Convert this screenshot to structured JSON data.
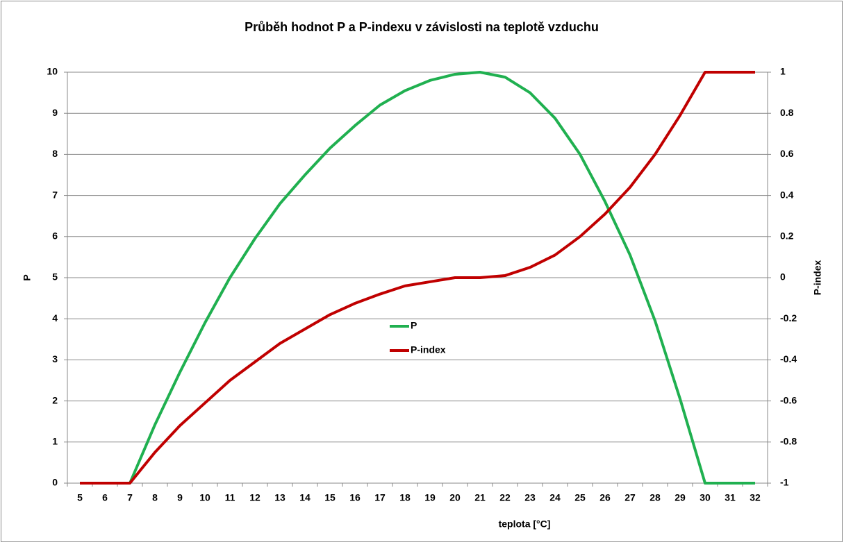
{
  "chart_data": {
    "type": "line",
    "title": "Průběh hodnot P a P-indexu v závislosti na teplotě vzduchu",
    "xlabel": "teplota [°C]",
    "ylabel": "P",
    "y2label": "P-index",
    "categories": [
      "5",
      "6",
      "7",
      "8",
      "9",
      "10",
      "11",
      "12",
      "13",
      "14",
      "15",
      "16",
      "17",
      "18",
      "19",
      "20",
      "21",
      "22",
      "23",
      "24",
      "25",
      "26",
      "27",
      "28",
      "29",
      "30",
      "31",
      "32"
    ],
    "series": [
      {
        "name": "P",
        "color": "#20b050",
        "values": [
          0,
          0,
          0,
          1.42,
          2.7,
          3.9,
          5.0,
          5.95,
          6.8,
          7.5,
          8.15,
          8.7,
          9.2,
          9.55,
          9.8,
          9.95,
          10,
          9.88,
          9.5,
          8.88,
          8.0,
          6.85,
          5.55,
          3.95,
          2.05,
          0,
          0,
          0
        ]
      },
      {
        "name": "P-index",
        "color": "#c00000",
        "axis": "y2",
        "values": [
          -1,
          -1,
          -1,
          -0.85,
          -0.72,
          -0.61,
          -0.5,
          -0.41,
          -0.32,
          -0.25,
          -0.18,
          -0.125,
          -0.08,
          -0.04,
          -0.02,
          0,
          0,
          0.01,
          0.05,
          0.11,
          0.2,
          0.31,
          0.44,
          0.6,
          0.79,
          1,
          1,
          1
        ]
      }
    ],
    "ylim": [
      0,
      10
    ],
    "yticks": [
      0,
      1,
      2,
      3,
      4,
      5,
      6,
      7,
      8,
      9,
      10
    ],
    "y2lim": [
      -1,
      1
    ],
    "y2ticks": [
      -1,
      -0.8,
      -0.6,
      -0.4,
      -0.2,
      0,
      0.2,
      0.4,
      0.6,
      0.8,
      1
    ],
    "grid": true,
    "legend": "center"
  }
}
